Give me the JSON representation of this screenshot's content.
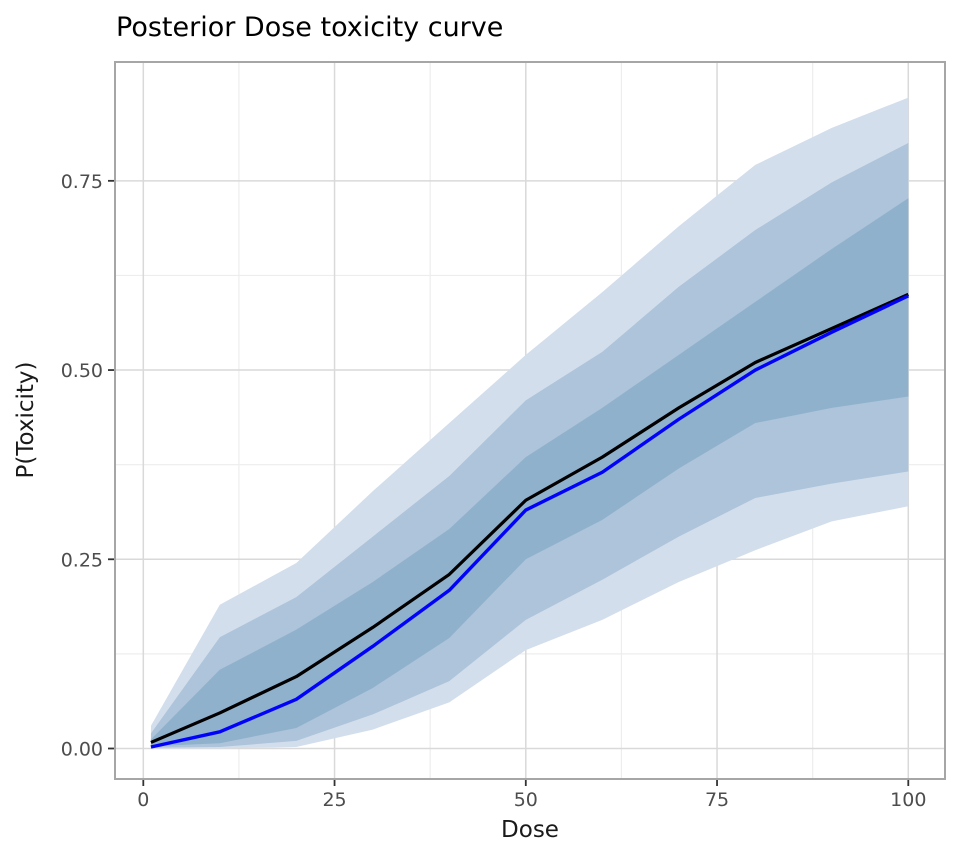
{
  "figure": {
    "title": "Posterior Dose toxicity curve",
    "xlabel": "Dose",
    "ylabel": "P(Toxicity)"
  },
  "chart_data": {
    "type": "area",
    "title": "Posterior Dose toxicity curve",
    "xlabel": "Dose",
    "ylabel": "P(Toxicity)",
    "x": [
      1,
      10,
      20,
      30,
      40,
      50,
      60,
      70,
      80,
      90,
      100
    ],
    "series": [
      {
        "name": "upper-95-credible",
        "values": [
          0.03,
          0.19,
          0.245,
          0.34,
          0.43,
          0.52,
          0.603,
          0.69,
          0.771,
          0.82,
          0.86
        ]
      },
      {
        "name": "lower-95-credible",
        "values": [
          0.0,
          0.0,
          0.002,
          0.025,
          0.061,
          0.13,
          0.17,
          0.22,
          0.262,
          0.3,
          0.32
        ]
      },
      {
        "name": "upper-80-credible",
        "values": [
          0.02,
          0.147,
          0.2,
          0.28,
          0.36,
          0.46,
          0.524,
          0.61,
          0.685,
          0.748,
          0.8
        ]
      },
      {
        "name": "lower-80-credible",
        "values": [
          0.001,
          0.002,
          0.01,
          0.045,
          0.089,
          0.17,
          0.223,
          0.28,
          0.331,
          0.35,
          0.366
        ]
      },
      {
        "name": "upper-50-credible",
        "values": [
          0.012,
          0.104,
          0.157,
          0.22,
          0.29,
          0.385,
          0.45,
          0.52,
          0.59,
          0.66,
          0.727
        ]
      },
      {
        "name": "lower-50-credible",
        "values": [
          0.003,
          0.007,
          0.027,
          0.08,
          0.146,
          0.25,
          0.302,
          0.37,
          0.43,
          0.45,
          0.465
        ]
      },
      {
        "name": "posterior-mean-line",
        "values": [
          0.008,
          0.047,
          0.095,
          0.16,
          0.23,
          0.328,
          0.385,
          0.45,
          0.51,
          0.555,
          0.6
        ]
      },
      {
        "name": "reference-blue-line",
        "values": [
          0.002,
          0.022,
          0.065,
          0.135,
          0.209,
          0.315,
          0.365,
          0.435,
          0.5,
          0.55,
          0.598
        ]
      }
    ],
    "x_ticks": {
      "values": [
        0,
        25,
        50,
        75,
        100
      ],
      "labels": [
        "0",
        "25",
        "50",
        "75",
        "100"
      ]
    },
    "y_ticks": {
      "values": [
        0.0,
        0.25,
        0.5,
        0.75
      ],
      "labels": [
        "0.00",
        "0.25",
        "0.50",
        "0.75"
      ]
    },
    "x_minor": [
      12.5,
      37.5,
      62.5,
      87.5
    ],
    "y_minor": [
      0.125,
      0.375,
      0.625
    ],
    "x_range": [
      -3.7,
      104.8
    ],
    "y_range": [
      -0.0403,
      0.907
    ],
    "grid": "on",
    "legend": "none",
    "colors": {
      "ribbon_95": "#d3deec",
      "ribbon_80": "#adc4da",
      "ribbon_50": "#8fb1cc",
      "mean_line": "#000000",
      "blue_line": "#0202fa",
      "grid_major": "#d9d9d9",
      "grid_minor": "#ededed",
      "panel_border": "#a6a6a6",
      "tick_mark": "#333333",
      "tick_label": "#4d4d4d",
      "panel_bg": "#ffffff"
    }
  }
}
